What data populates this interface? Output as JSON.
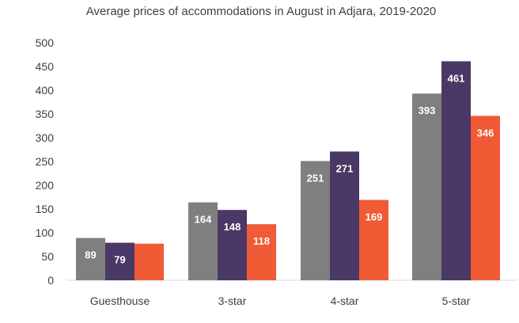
{
  "chart_data": {
    "type": "bar",
    "title": "Average prices of accommodations in August in Adjara, 2019-2020",
    "categories": [
      "Guesthouse",
      "3-star",
      "4-star",
      "5-star"
    ],
    "series": [
      {
        "values": [
          89,
          164,
          251,
          393
        ],
        "color": "#7f7f7f"
      },
      {
        "values": [
          79,
          148,
          271,
          461
        ],
        "color": "#4a3866"
      },
      {
        "values": [
          77,
          118,
          169,
          346
        ],
        "color": "#f05a35"
      }
    ],
    "data_labels": [
      [
        89,
        164,
        251,
        393
      ],
      [
        79,
        148,
        271,
        461
      ],
      [
        "",
        118,
        169,
        346
      ]
    ],
    "ylim": [
      0,
      500
    ],
    "yticks": [
      0,
      50,
      100,
      150,
      200,
      250,
      300,
      350,
      400,
      450,
      500
    ],
    "grid": false,
    "legend": "none",
    "xlabel": "",
    "ylabel": ""
  }
}
